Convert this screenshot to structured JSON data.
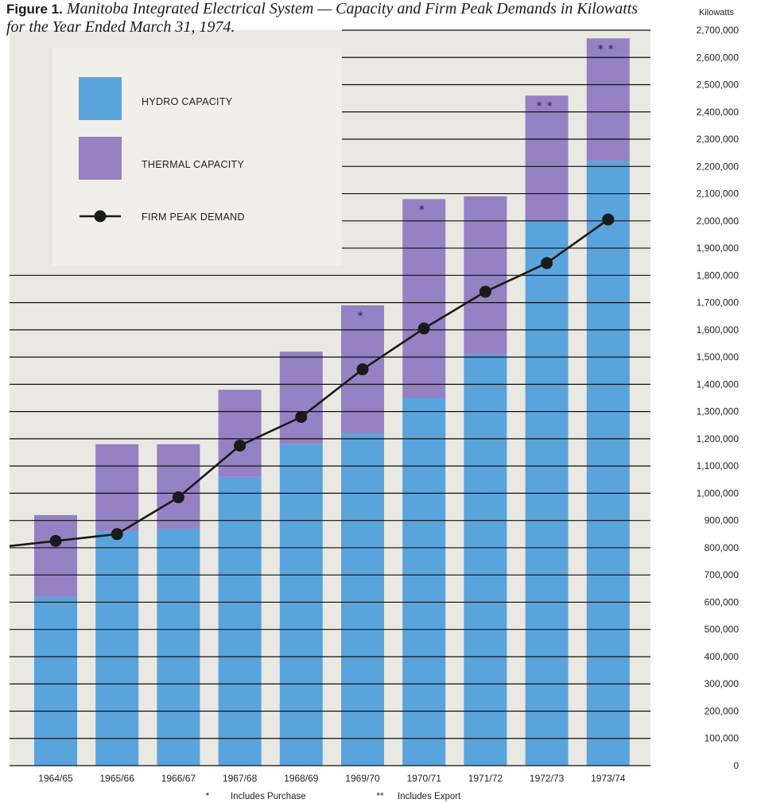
{
  "title": {
    "lead": "Figure 1.",
    "rest": "Manitoba Integrated Electrical System — Capacity and Firm Peak Demands in Kilowatts for the Year Ended March 31, 1974."
  },
  "colors": {
    "hydro": "#5aa4dd",
    "thermal": "#9581c3",
    "demand": "#1a1a1a",
    "panel": "#e9e8e2",
    "legend_box": "#f0efea",
    "grid": "#111111"
  },
  "legend": {
    "hydro_label": "HYDRO CAPACITY",
    "thermal_label": "THERMAL CAPACITY",
    "demand_label": "FIRM PEAK DEMAND"
  },
  "notes": {
    "purchase_symbol": "*",
    "purchase_label": "Includes Purchase",
    "export_symbol": "**",
    "export_label": "Includes Export"
  },
  "chart_data": {
    "type": "bar",
    "title": "Figure 1. Manitoba Integrated Electrical System — Capacity and Firm Peak Demands in Kilowatts for the Year Ended March 31, 1974.",
    "ylabel": "Kilowatts",
    "ylim": [
      0,
      2700000
    ],
    "y_ticks": [
      "0",
      "100,000",
      "200,000",
      "300,000",
      "400,000",
      "500,000",
      "600,000",
      "700,000",
      "800,000",
      "900,000",
      "1,000,000",
      "1,100,000",
      "1,200,000",
      "1,300,000",
      "1,400,000",
      "1,500,000",
      "1,600,000",
      "1,700,000",
      "1,800,000",
      "1,900,000",
      "2,000,000",
      "2,100,000",
      "2,200,000",
      "2,300,000",
      "2,400,000",
      "2,500,000",
      "2,600,000",
      "2,700,000"
    ],
    "grid": true,
    "legend_position": "top-left",
    "categories": [
      "1964/65",
      "1965/66",
      "1966/67",
      "1967/68",
      "1968/69",
      "1969/70",
      "1970/71",
      "1971/72",
      "1972/73",
      "1973/74"
    ],
    "series": [
      {
        "name": "HYDRO CAPACITY",
        "kind": "stacked-bar",
        "values": [
          620000,
          860000,
          870000,
          1060000,
          1180000,
          1220000,
          1350000,
          1510000,
          2000000,
          2220000
        ]
      },
      {
        "name": "THERMAL CAPACITY",
        "kind": "stacked-bar",
        "values": [
          300000,
          320000,
          310000,
          320000,
          340000,
          470000,
          730000,
          580000,
          460000,
          450000
        ]
      },
      {
        "name": "FIRM PEAK DEMAND",
        "kind": "line",
        "values": [
          825000,
          850000,
          985000,
          1175000,
          1280000,
          1455000,
          1605000,
          1740000,
          1845000,
          2005000
        ]
      }
    ],
    "bar_markers": [
      "",
      "",
      "",
      "",
      "",
      "*",
      "*",
      "",
      "**",
      "**"
    ]
  }
}
